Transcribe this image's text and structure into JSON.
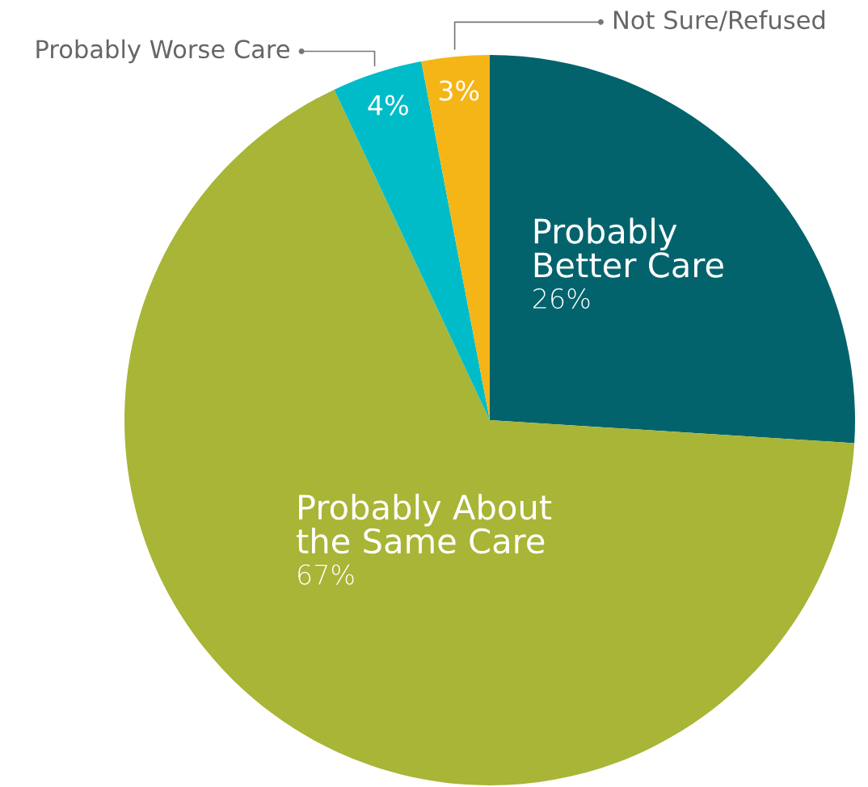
{
  "chart_data": {
    "type": "pie",
    "categories": [
      "Probably\nBetter Care",
      "Probably About\nthe Same Care",
      "Probably Worse Care",
      "Not Sure/Refused"
    ],
    "values": [
      26,
      67,
      4,
      3
    ],
    "colors": [
      "#02636c",
      "#a8b536",
      "#00bcc8",
      "#f5b516"
    ],
    "value_labels": [
      "26%",
      "67%",
      "4%",
      "3%"
    ]
  }
}
